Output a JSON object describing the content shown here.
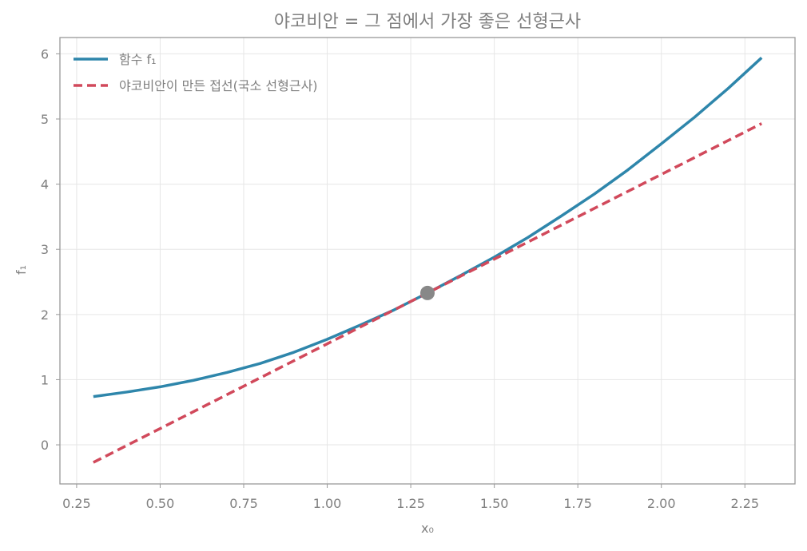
{
  "chart_data": {
    "type": "line",
    "title": "야코비안 = 그 점에서 가장 좋은 선형근사",
    "xlabel": "x₀",
    "ylabel": "f₁",
    "xlim": [
      0.2,
      2.4
    ],
    "ylim": [
      -0.6,
      6.25
    ],
    "xticks": [
      0.25,
      0.5,
      0.75,
      1.0,
      1.25,
      1.5,
      1.75,
      2.0,
      2.25
    ],
    "xtick_labels": [
      "0.25",
      "0.50",
      "0.75",
      "1.00",
      "1.25",
      "1.50",
      "1.75",
      "2.00",
      "2.25"
    ],
    "yticks": [
      0,
      1,
      2,
      3,
      4,
      5,
      6
    ],
    "ytick_labels": [
      "0",
      "1",
      "2",
      "3",
      "4",
      "5",
      "6"
    ],
    "grid": true,
    "legend_position": "top-left",
    "series": [
      {
        "name": "함수 f₁",
        "style": "solid",
        "color": "#2e86ab",
        "x": [
          0.3,
          0.4,
          0.5,
          0.6,
          0.7,
          0.8,
          0.9,
          1.0,
          1.1,
          1.2,
          1.3,
          1.4,
          1.5,
          1.6,
          1.7,
          1.8,
          1.9,
          2.0,
          2.1,
          2.2,
          2.3
        ],
        "y": [
          0.74,
          0.81,
          0.89,
          0.99,
          1.11,
          1.25,
          1.42,
          1.62,
          1.84,
          2.07,
          2.33,
          2.6,
          2.88,
          3.18,
          3.51,
          3.85,
          4.22,
          4.62,
          5.03,
          5.47,
          5.94
        ]
      },
      {
        "name": "야코비안이 만든 접선(국소 선형근사)",
        "style": "dashed",
        "color": "#d1495b",
        "x": [
          0.3,
          2.3
        ],
        "y": [
          -0.27,
          4.93
        ]
      }
    ],
    "point": {
      "x": 1.3,
      "y": 2.33,
      "color": "#888888"
    }
  }
}
